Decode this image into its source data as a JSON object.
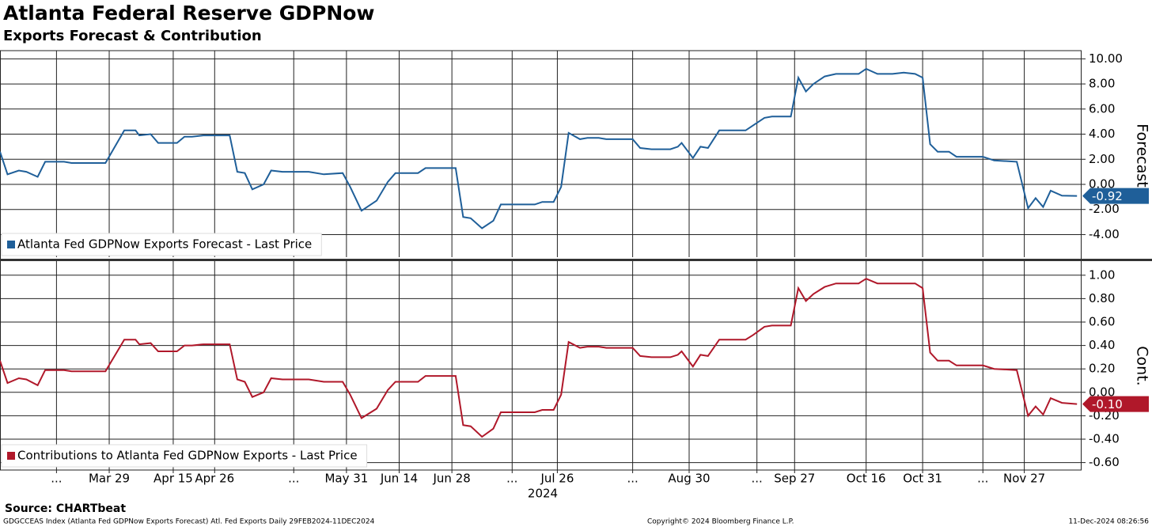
{
  "title": "Atlanta Federal Reserve GDPNow",
  "subtitle": "Exports Forecast & Contribution",
  "chart_data": [
    {
      "type": "line",
      "ylabel": "Forecast",
      "xlim": [
        "2024-02-29",
        "2024-12-12"
      ],
      "x": [
        "2024-02-29",
        "2024-03-02",
        "2024-03-05",
        "2024-03-07",
        "2024-03-10",
        "2024-03-12",
        "2024-03-17",
        "2024-03-19",
        "2024-03-23",
        "2024-03-28",
        "2024-04-02",
        "2024-04-05",
        "2024-04-06",
        "2024-04-09",
        "2024-04-11",
        "2024-04-16",
        "2024-04-18",
        "2024-04-20",
        "2024-04-23",
        "2024-04-30",
        "2024-05-02",
        "2024-05-04",
        "2024-05-06",
        "2024-05-09",
        "2024-05-11",
        "2024-05-14",
        "2024-05-21",
        "2024-05-25",
        "2024-05-30",
        "2024-06-01",
        "2024-06-04",
        "2024-06-08",
        "2024-06-11",
        "2024-06-13",
        "2024-06-19",
        "2024-06-21",
        "2024-06-29",
        "2024-07-01",
        "2024-07-03",
        "2024-07-06",
        "2024-07-09",
        "2024-07-11",
        "2024-07-15",
        "2024-07-20",
        "2024-07-22",
        "2024-07-25",
        "2024-07-27",
        "2024-07-29",
        "2024-08-01",
        "2024-08-03",
        "2024-08-06",
        "2024-08-08",
        "2024-08-15",
        "2024-08-17",
        "2024-08-20",
        "2024-08-25",
        "2024-08-27",
        "2024-08-28",
        "2024-08-31",
        "2024-09-02",
        "2024-09-04",
        "2024-09-07",
        "2024-09-14",
        "2024-09-16",
        "2024-09-19",
        "2024-09-21",
        "2024-09-26",
        "2024-09-28",
        "2024-09-30",
        "2024-10-02",
        "2024-10-05",
        "2024-10-08",
        "2024-10-14",
        "2024-10-16",
        "2024-10-19",
        "2024-10-23",
        "2024-10-26",
        "2024-10-29",
        "2024-10-31",
        "2024-11-02",
        "2024-11-04",
        "2024-11-07",
        "2024-11-09",
        "2024-11-16",
        "2024-11-19",
        "2024-11-25",
        "2024-11-28",
        "2024-11-30",
        "2024-12-02",
        "2024-12-04",
        "2024-12-07",
        "2024-12-11"
      ],
      "series": [
        {
          "name": "Atlanta Fed GDPNow Exports Forecast - Last Price",
          "color": "#1f5f99",
          "values": [
            2.6,
            0.8,
            1.1,
            1.0,
            0.6,
            1.8,
            1.8,
            1.7,
            1.7,
            1.7,
            4.3,
            4.3,
            3.9,
            4.0,
            3.3,
            3.3,
            3.8,
            3.8,
            3.9,
            3.9,
            1.0,
            0.9,
            -0.4,
            0.0,
            1.1,
            1.0,
            1.0,
            0.8,
            0.9,
            -0.2,
            -2.1,
            -1.3,
            0.2,
            0.9,
            0.9,
            1.3,
            1.3,
            -2.6,
            -2.7,
            -3.5,
            -2.9,
            -1.6,
            -1.6,
            -1.6,
            -1.4,
            -1.4,
            -0.2,
            4.1,
            3.6,
            3.7,
            3.7,
            3.6,
            3.6,
            2.9,
            2.8,
            2.8,
            3.0,
            3.3,
            2.1,
            3.0,
            2.9,
            4.3,
            4.3,
            4.7,
            5.3,
            5.4,
            5.4,
            8.5,
            7.4,
            8.0,
            8.6,
            8.8,
            8.8,
            9.2,
            8.8,
            8.8,
            8.9,
            8.8,
            8.5,
            3.2,
            2.6,
            2.6,
            2.2,
            2.2,
            1.9,
            1.8,
            -1.9,
            -1.1,
            -1.8,
            -0.5,
            -0.9,
            -0.92
          ]
        }
      ],
      "last_value_label": "-0.92",
      "ylim": [
        -5.8,
        10.4
      ],
      "yticks": [
        {
          "value": 10,
          "label": "10.00"
        },
        {
          "value": 8,
          "label": "8.00"
        },
        {
          "value": 6,
          "label": "6.00"
        },
        {
          "value": 4,
          "label": "4.00"
        },
        {
          "value": 2,
          "label": "2.00"
        },
        {
          "value": 0,
          "label": "0.00"
        },
        {
          "value": -2,
          "label": "-2.00"
        },
        {
          "value": -4,
          "label": "-4.00"
        }
      ],
      "grid": true
    },
    {
      "type": "line",
      "ylabel": "Cont.",
      "xlim": [
        "2024-02-29",
        "2024-12-12"
      ],
      "x": [
        "2024-02-29",
        "2024-03-02",
        "2024-03-05",
        "2024-03-07",
        "2024-03-10",
        "2024-03-12",
        "2024-03-17",
        "2024-03-19",
        "2024-03-23",
        "2024-03-28",
        "2024-04-02",
        "2024-04-05",
        "2024-04-06",
        "2024-04-09",
        "2024-04-11",
        "2024-04-16",
        "2024-04-18",
        "2024-04-20",
        "2024-04-23",
        "2024-04-30",
        "2024-05-02",
        "2024-05-04",
        "2024-05-06",
        "2024-05-09",
        "2024-05-11",
        "2024-05-14",
        "2024-05-21",
        "2024-05-25",
        "2024-05-30",
        "2024-06-01",
        "2024-06-04",
        "2024-06-08",
        "2024-06-11",
        "2024-06-13",
        "2024-06-19",
        "2024-06-21",
        "2024-06-29",
        "2024-07-01",
        "2024-07-03",
        "2024-07-06",
        "2024-07-09",
        "2024-07-11",
        "2024-07-15",
        "2024-07-20",
        "2024-07-22",
        "2024-07-25",
        "2024-07-27",
        "2024-07-29",
        "2024-08-01",
        "2024-08-03",
        "2024-08-06",
        "2024-08-08",
        "2024-08-15",
        "2024-08-17",
        "2024-08-20",
        "2024-08-25",
        "2024-08-27",
        "2024-08-28",
        "2024-08-31",
        "2024-09-02",
        "2024-09-04",
        "2024-09-07",
        "2024-09-14",
        "2024-09-16",
        "2024-09-19",
        "2024-09-21",
        "2024-09-26",
        "2024-09-28",
        "2024-09-30",
        "2024-10-02",
        "2024-10-05",
        "2024-10-08",
        "2024-10-14",
        "2024-10-16",
        "2024-10-19",
        "2024-10-23",
        "2024-10-26",
        "2024-10-29",
        "2024-10-31",
        "2024-11-02",
        "2024-11-04",
        "2024-11-07",
        "2024-11-09",
        "2024-11-16",
        "2024-11-19",
        "2024-11-25",
        "2024-11-28",
        "2024-11-30",
        "2024-12-02",
        "2024-12-04",
        "2024-12-07",
        "2024-12-11"
      ],
      "series": [
        {
          "name": "Contributions to Atlanta Fed GDPNow Exports - Last Price",
          "color": "#b0182a",
          "values": [
            0.27,
            0.08,
            0.12,
            0.11,
            0.06,
            0.19,
            0.19,
            0.18,
            0.18,
            0.18,
            0.45,
            0.45,
            0.41,
            0.42,
            0.35,
            0.35,
            0.4,
            0.4,
            0.41,
            0.41,
            0.11,
            0.09,
            -0.04,
            0.0,
            0.12,
            0.11,
            0.11,
            0.09,
            0.09,
            -0.02,
            -0.22,
            -0.14,
            0.02,
            0.09,
            0.09,
            0.14,
            0.14,
            -0.28,
            -0.29,
            -0.38,
            -0.31,
            -0.17,
            -0.17,
            -0.17,
            -0.15,
            -0.15,
            -0.02,
            0.43,
            0.38,
            0.39,
            0.39,
            0.38,
            0.38,
            0.31,
            0.3,
            0.3,
            0.32,
            0.35,
            0.22,
            0.32,
            0.31,
            0.45,
            0.45,
            0.49,
            0.56,
            0.57,
            0.57,
            0.89,
            0.78,
            0.84,
            0.9,
            0.93,
            0.93,
            0.97,
            0.93,
            0.93,
            0.93,
            0.93,
            0.89,
            0.34,
            0.27,
            0.27,
            0.23,
            0.23,
            0.2,
            0.19,
            -0.2,
            -0.12,
            -0.19,
            -0.05,
            -0.09,
            -0.1
          ]
        }
      ],
      "last_value_label": "-0.10",
      "ylim": [
        -0.65,
        1.1
      ],
      "yticks": [
        {
          "value": 1,
          "label": "1.00"
        },
        {
          "value": 0.8,
          "label": "0.80"
        },
        {
          "value": 0.6,
          "label": "0.60"
        },
        {
          "value": 0.4,
          "label": "0.40"
        },
        {
          "value": 0.2,
          "label": "0.20"
        },
        {
          "value": 0,
          "label": "0.00"
        },
        {
          "value": -0.2,
          "label": "-0.20"
        },
        {
          "value": -0.4,
          "label": "-0.40"
        },
        {
          "value": -0.6,
          "label": "-0.60"
        }
      ],
      "xticks": [
        {
          "value": "2024-03-15",
          "label": "..."
        },
        {
          "value": "2024-03-29",
          "label": "Mar 29"
        },
        {
          "value": "2024-04-15",
          "label": "Apr 15"
        },
        {
          "value": "2024-04-26",
          "label": "Apr 26"
        },
        {
          "value": "2024-05-17",
          "label": "..."
        },
        {
          "value": "2024-05-31",
          "label": "May 31"
        },
        {
          "value": "2024-06-14",
          "label": "Jun 14"
        },
        {
          "value": "2024-06-28",
          "label": "Jun 28"
        },
        {
          "value": "2024-07-14",
          "label": "..."
        },
        {
          "value": "2024-07-26",
          "label": "Jul 26"
        },
        {
          "value": "2024-08-15",
          "label": "..."
        },
        {
          "value": "2024-08-30",
          "label": "Aug 30"
        },
        {
          "value": "2024-09-17",
          "label": "..."
        },
        {
          "value": "2024-09-27",
          "label": "Sep 27"
        },
        {
          "value": "2024-10-16",
          "label": "Oct 16"
        },
        {
          "value": "2024-10-31",
          "label": "Oct 31"
        },
        {
          "value": "2024-11-16",
          "label": "..."
        },
        {
          "value": "2024-11-27",
          "label": "Nov 27"
        }
      ],
      "x_year_label": "2024",
      "grid": true
    }
  ],
  "footer": {
    "source": "Source: CHARTbeat",
    "ticker": "GDGCCEAS Index (Atlanta Fed GDPNow Exports Forecast) Atl. Fed Exports  Daily 29FEB2024-11DEC2024",
    "copyright": "Copyright© 2024 Bloomberg Finance L.P.",
    "timestamp": "11-Dec-2024 08:26:56"
  }
}
